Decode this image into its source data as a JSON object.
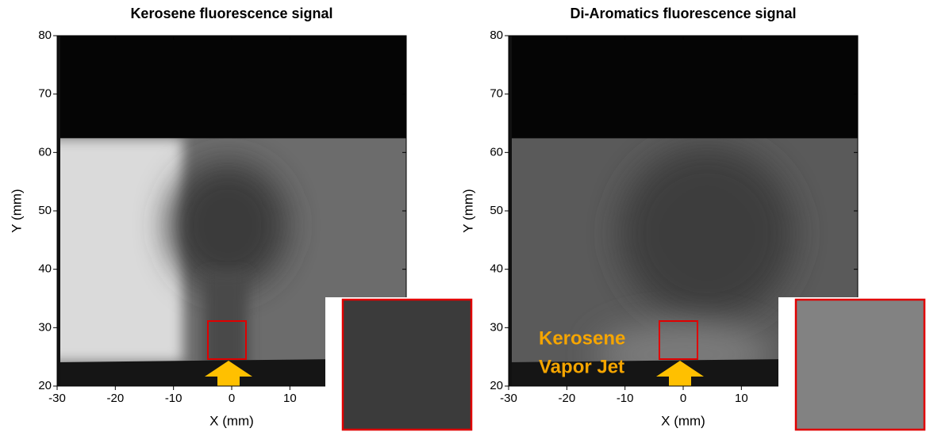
{
  "chart_data": [
    {
      "type": "image",
      "title": "Kerosene fluorescence signal",
      "xlabel": "X (mm)",
      "ylabel": "Y (mm)",
      "xlim": [
        -30,
        30
      ],
      "ylim": [
        20,
        80
      ],
      "xticks": [
        -30,
        -20,
        -10,
        0,
        10
      ],
      "yticks": [
        20,
        30,
        40,
        50,
        60,
        70,
        80
      ]
    },
    {
      "type": "image",
      "title": "Di-Aromatics fluorescence signal",
      "xlabel": "X (mm)",
      "ylabel": "Y (mm)",
      "xlim": [
        -30,
        30
      ],
      "ylim": [
        20,
        80
      ],
      "xticks": [
        -30,
        -20,
        -10,
        0,
        10
      ],
      "yticks": [
        20,
        30,
        40,
        50,
        60,
        70,
        80
      ],
      "annotation": [
        "Kerosene",
        "Vapor Jet"
      ]
    }
  ]
}
